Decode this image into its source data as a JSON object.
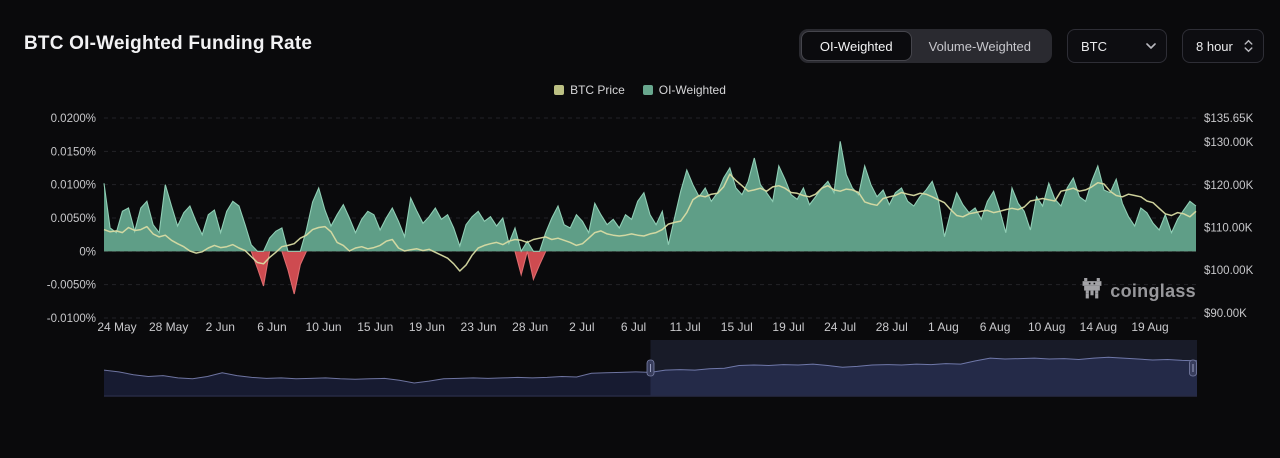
{
  "header": {
    "title": "BTC OI-Weighted Funding Rate"
  },
  "controls": {
    "segmented": {
      "options": [
        "OI-Weighted",
        "Volume-Weighted"
      ],
      "active": "OI-Weighted"
    },
    "coin_select": {
      "value": "BTC"
    },
    "interval_select": {
      "value": "8 hour"
    }
  },
  "watermark": {
    "text": "coinglass"
  },
  "chart_data": {
    "type": "area",
    "title": "BTC OI-Weighted Funding Rate",
    "grid": "horizontal-dashed",
    "legend_position": "top-center",
    "legend": [
      {
        "label": "BTC Price",
        "color": "#bcc083"
      },
      {
        "label": "OI-Weighted",
        "color": "#68a78e"
      }
    ],
    "x_tick_labels": [
      "24 May",
      "28 May",
      "2 Jun",
      "6 Jun",
      "10 Jun",
      "15 Jun",
      "19 Jun",
      "23 Jun",
      "28 Jun",
      "2 Jul",
      "6 Jul",
      "11 Jul",
      "15 Jul",
      "19 Jul",
      "24 Jul",
      "28 Jul",
      "1 Aug",
      "6 Aug",
      "10 Aug",
      "14 Aug",
      "19 Aug"
    ],
    "left_axis": {
      "name": "funding-rate-%",
      "min": -0.01,
      "max": 0.02,
      "ticks": [
        {
          "label": "0.0200%",
          "v": 0.02
        },
        {
          "label": "0.0150%",
          "v": 0.015
        },
        {
          "label": "0.0100%",
          "v": 0.01
        },
        {
          "label": "0.0050%",
          "v": 0.005
        },
        {
          "label": "0%",
          "v": 0
        },
        {
          "label": "-0.0050%",
          "v": -0.005
        },
        {
          "label": "-0.0100%",
          "v": -0.01
        }
      ]
    },
    "right_axis": {
      "name": "btc-price-K$",
      "min": 88.8,
      "max": 135.65,
      "ticks": [
        {
          "label": "$135.65K",
          "v": 135.65
        },
        {
          "label": "$130.00K",
          "v": 130
        },
        {
          "label": "$120.00K",
          "v": 120
        },
        {
          "label": "$110.00K",
          "v": 110
        },
        {
          "label": "$100.00K",
          "v": 100
        },
        {
          "label": "$90.00K",
          "v": 90
        }
      ]
    },
    "series": [
      {
        "name": "OI-Weighted",
        "type": "area",
        "axis": "left",
        "fill_pos": "#5f9e87",
        "edge_pos": "#90ceb5",
        "fill_neg": "#ce4b50",
        "edge_neg": "#dd6b6e",
        "values": [
          0.0102,
          0.0035,
          0.0028,
          0.006,
          0.0065,
          0.003,
          0.0065,
          0.0075,
          0.004,
          0.0028,
          0.01,
          0.0068,
          0.0038,
          0.0058,
          0.0068,
          0.0045,
          0.0025,
          0.0055,
          0.0062,
          0.0028,
          0.006,
          0.0075,
          0.0068,
          0.004,
          0.001,
          -0.0025,
          -0.0052,
          0.002,
          0.003,
          0.0035,
          -0.0028,
          -0.0064,
          -0.002,
          0.0032,
          0.0074,
          0.0095,
          0.0062,
          0.0038,
          0.0055,
          0.007,
          0.005,
          0.0028,
          0.0048,
          0.006,
          0.0055,
          0.0032,
          0.005,
          0.0065,
          0.0045,
          0.0022,
          0.008,
          0.006,
          0.0042,
          0.0052,
          0.0065,
          0.0048,
          0.0055,
          0.0035,
          0.0008,
          0.004,
          0.0052,
          0.006,
          0.0045,
          0.0052,
          0.0038,
          0.005,
          0.0012,
          0.0035,
          -0.0035,
          0.0015,
          -0.0042,
          -0.002,
          0.0028,
          0.005,
          0.0068,
          0.004,
          0.0035,
          0.0055,
          0.0045,
          0.0028,
          0.0072,
          0.0055,
          0.004,
          0.0048,
          0.0035,
          0.0055,
          0.0048,
          0.0075,
          0.0088,
          0.0055,
          0.004,
          0.006,
          0.001,
          0.005,
          0.009,
          0.0122,
          0.01,
          0.0082,
          0.0095,
          0.0075,
          0.0088,
          0.011,
          0.0125,
          0.0095,
          0.0085,
          0.0105,
          0.014,
          0.01,
          0.0088,
          0.0075,
          0.0128,
          0.0108,
          0.0085,
          0.0078,
          0.0095,
          0.007,
          0.0082,
          0.0095,
          0.0105,
          0.0088,
          0.0165,
          0.0115,
          0.0095,
          0.0085,
          0.0128,
          0.01,
          0.0082,
          0.0092,
          0.007,
          0.0088,
          0.0095,
          0.0075,
          0.0068,
          0.0082,
          0.0092,
          0.0105,
          0.0078,
          0.0022,
          0.0058,
          0.0088,
          0.007,
          0.0058,
          0.0065,
          0.0048,
          0.0075,
          0.009,
          0.0062,
          0.0028,
          0.0095,
          0.0072,
          0.006,
          0.0032,
          0.0082,
          0.0068,
          0.0102,
          0.0078,
          0.0068,
          0.0095,
          0.011,
          0.0082,
          0.0075,
          0.0105,
          0.0128,
          0.0092,
          0.0088,
          0.0108,
          0.0072,
          0.0052,
          0.0038,
          0.0065,
          0.0058,
          0.0042,
          0.0032,
          0.0055,
          0.0028,
          0.0048,
          0.0062,
          0.0075,
          0.0068
        ]
      },
      {
        "name": "BTC Price",
        "type": "line",
        "axis": "right",
        "color": "#d8dba3",
        "values": [
          109.5,
          109.0,
          109.2,
          108.8,
          110.0,
          109.3,
          109.5,
          110.2,
          108.5,
          107.8,
          108.2,
          107.0,
          106.2,
          105.5,
          104.5,
          104.0,
          104.3,
          105.2,
          105.8,
          105.3,
          105.5,
          106.0,
          105.2,
          104.6,
          103.2,
          101.8,
          101.5,
          103.0,
          104.2,
          105.5,
          105.8,
          106.2,
          107.5,
          108.2,
          109.5,
          110.0,
          110.2,
          109.0,
          106.5,
          105.8,
          104.5,
          105.2,
          105.5,
          105.0,
          105.3,
          105.8,
          106.8,
          107.2,
          105.2,
          104.5,
          104.8,
          105.0,
          104.6,
          104.9,
          104.2,
          103.5,
          102.8,
          101.5,
          99.8,
          101.2,
          103.5,
          105.2,
          105.8,
          106.2,
          106.5,
          106.0,
          106.8,
          107.2,
          107.0,
          106.5,
          107.2,
          107.5,
          107.8,
          107.2,
          107.5,
          107.0,
          106.5,
          105.8,
          106.2,
          107.5,
          108.8,
          109.2,
          108.5,
          108.2,
          108.0,
          108.2,
          108.5,
          108.2,
          108.0,
          108.5,
          108.8,
          109.5,
          110.8,
          111.2,
          111.5,
          113.5,
          116.5,
          117.5,
          117.2,
          117.8,
          118.0,
          119.5,
          122.5,
          121.0,
          119.8,
          118.5,
          118.8,
          119.2,
          118.5,
          119.5,
          119.8,
          119.2,
          118.2,
          118.0,
          117.5,
          117.2,
          117.8,
          119.2,
          119.8,
          118.8,
          118.5,
          119.0,
          118.8,
          118.2,
          116.0,
          115.5,
          115.2,
          116.8,
          117.2,
          117.5,
          118.2,
          117.8,
          117.5,
          118.0,
          117.8,
          117.2,
          116.5,
          115.8,
          114.2,
          112.8,
          112.5,
          113.2,
          113.5,
          113.8,
          114.0,
          113.5,
          113.8,
          114.2,
          114.5,
          114.2,
          114.8,
          116.2,
          116.5,
          116.8,
          116.5,
          116.2,
          118.5,
          118.8,
          119.2,
          118.5,
          118.8,
          119.5,
          120.5,
          120.2,
          118.5,
          117.5,
          117.2,
          117.8,
          117.5,
          117.2,
          116.2,
          115.8,
          114.5,
          113.2,
          112.8,
          113.5,
          113.2,
          112.5,
          113.8
        ]
      }
    ],
    "navigator": {
      "selection": [
        0.5,
        1.0
      ],
      "area_fill": "#171b31",
      "line_color": "#6e74a0",
      "selection_fill": "rgba(126,146,232,0.13)",
      "values": [
        0.52,
        0.48,
        0.42,
        0.38,
        0.4,
        0.35,
        0.33,
        0.38,
        0.46,
        0.4,
        0.36,
        0.34,
        0.35,
        0.33,
        0.34,
        0.35,
        0.33,
        0.32,
        0.33,
        0.34,
        0.3,
        0.24,
        0.28,
        0.33,
        0.34,
        0.35,
        0.34,
        0.35,
        0.36,
        0.35,
        0.36,
        0.38,
        0.37,
        0.45,
        0.46,
        0.47,
        0.48,
        0.47,
        0.52,
        0.53,
        0.52,
        0.55,
        0.56,
        0.62,
        0.63,
        0.62,
        0.64,
        0.63,
        0.65,
        0.62,
        0.58,
        0.6,
        0.63,
        0.64,
        0.63,
        0.65,
        0.64,
        0.66,
        0.65,
        0.72,
        0.78,
        0.76,
        0.77,
        0.78,
        0.76,
        0.77,
        0.75,
        0.78,
        0.8,
        0.78,
        0.76,
        0.74,
        0.75,
        0.73,
        0.72
      ]
    }
  }
}
